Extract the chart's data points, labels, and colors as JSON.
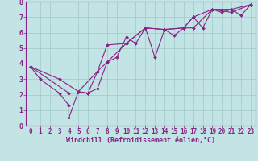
{
  "xlabel": "Windchill (Refroidissement éolien,°C)",
  "xlim": [
    -0.5,
    23.5
  ],
  "ylim": [
    0,
    8
  ],
  "xticks": [
    0,
    1,
    2,
    3,
    4,
    5,
    6,
    7,
    8,
    9,
    10,
    11,
    12,
    13,
    14,
    15,
    16,
    17,
    18,
    19,
    20,
    21,
    22,
    23
  ],
  "yticks": [
    0,
    1,
    2,
    3,
    4,
    5,
    6,
    7,
    8
  ],
  "background_color": "#c2e4e4",
  "line_color": "#882288",
  "grid_color": "#a0c8c8",
  "line1_x": [
    0,
    1,
    3,
    4,
    4,
    5,
    6,
    7,
    8,
    9,
    10,
    11,
    12,
    13,
    14,
    15,
    16,
    17,
    18,
    19,
    20,
    21,
    22,
    23
  ],
  "line1_y": [
    3.8,
    3.0,
    2.1,
    1.3,
    0.5,
    2.2,
    2.1,
    3.5,
    4.1,
    4.4,
    5.7,
    5.3,
    6.3,
    4.4,
    6.2,
    5.8,
    6.3,
    7.0,
    6.3,
    7.5,
    7.3,
    7.5,
    7.1,
    7.8
  ],
  "line2_x": [
    0,
    3,
    5,
    7,
    8,
    10,
    12,
    14,
    16,
    17,
    19,
    21,
    23
  ],
  "line2_y": [
    3.8,
    3.0,
    2.2,
    3.5,
    5.2,
    5.3,
    6.3,
    6.2,
    6.3,
    7.0,
    7.5,
    7.5,
    7.8
  ],
  "line3_x": [
    0,
    4,
    6,
    7,
    8,
    10,
    12,
    14,
    16,
    17,
    19,
    21,
    23
  ],
  "line3_y": [
    3.8,
    2.1,
    2.1,
    2.4,
    4.1,
    5.3,
    6.3,
    6.2,
    6.3,
    6.3,
    7.5,
    7.3,
    7.8
  ],
  "tick_fontsize": 5.5,
  "xlabel_fontsize": 6.0
}
